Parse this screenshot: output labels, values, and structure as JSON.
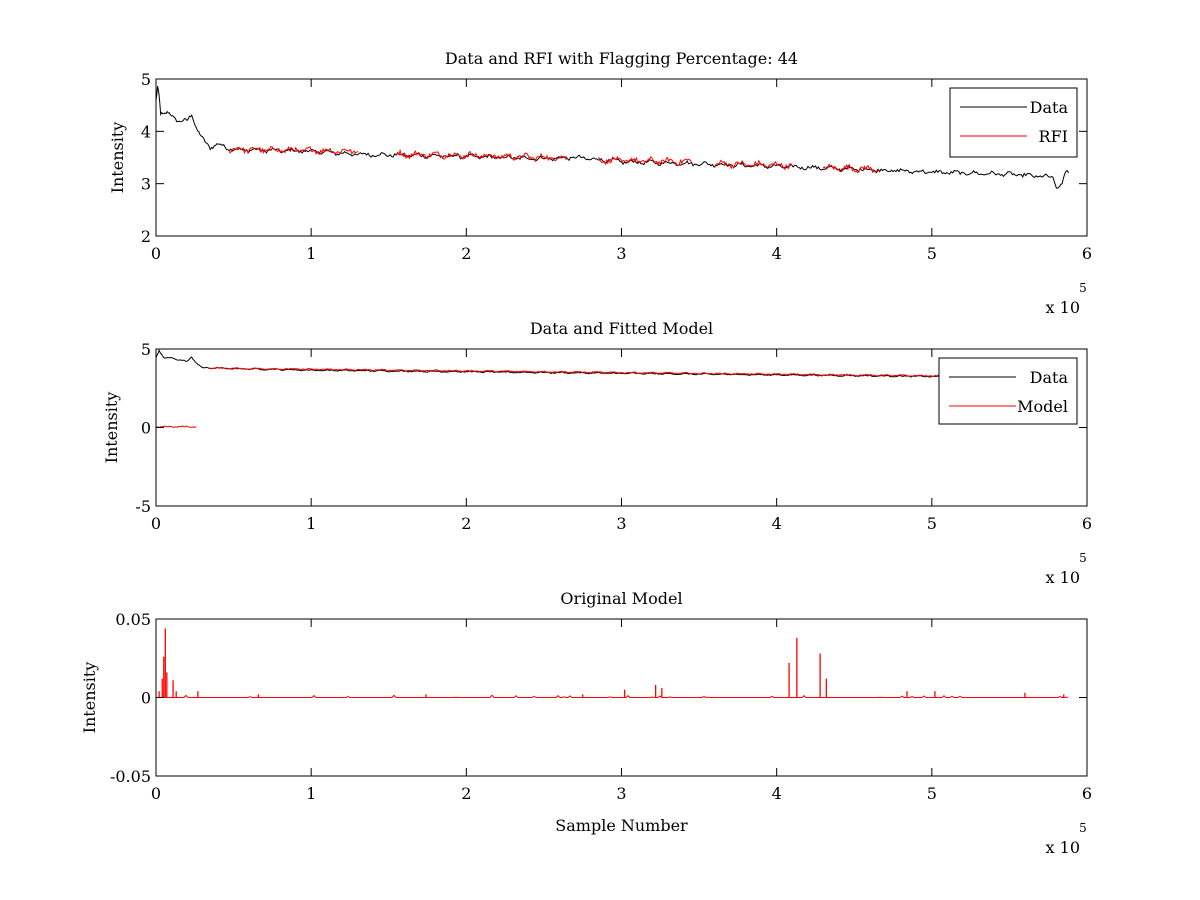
{
  "chart_data": [
    {
      "type": "line",
      "title": "Data and RFI with Flagging Percentage: 44",
      "xlabel": "",
      "ylabel": "Intensity",
      "xlim": [
        0,
        6
      ],
      "ylim": [
        2,
        5
      ],
      "x_multiplier": "x 10",
      "x_multiplier_exp": "5",
      "xticks": [
        0,
        1,
        2,
        3,
        4,
        5,
        6
      ],
      "yticks": [
        2,
        3,
        4,
        5
      ],
      "legend": {
        "placement": "top-right",
        "entries": [
          "Data",
          "RFI"
        ]
      },
      "series": [
        {
          "name": "Data",
          "color": "#000000",
          "x": [
            0,
            0.01,
            0.02,
            0.03,
            0.05,
            0.08,
            0.1,
            0.15,
            0.2,
            0.23,
            0.26,
            0.3,
            0.35,
            0.4,
            0.5,
            1.0,
            1.3,
            1.5,
            2.0,
            2.5,
            2.7,
            3.0,
            3.5,
            4.0,
            4.5,
            5.0,
            5.5,
            5.7,
            5.78,
            5.81,
            5.84,
            5.87,
            5.88
          ],
          "y": [
            4.6,
            4.88,
            4.7,
            4.35,
            4.3,
            4.35,
            4.32,
            4.18,
            4.2,
            4.35,
            4.05,
            3.85,
            3.7,
            3.75,
            3.65,
            3.62,
            3.56,
            3.55,
            3.52,
            3.48,
            3.5,
            3.42,
            3.38,
            3.33,
            3.28,
            3.22,
            3.18,
            3.14,
            3.12,
            2.9,
            3.0,
            3.25,
            3.2
          ]
        },
        {
          "name": "RFI",
          "color": "#ff0000",
          "segments": [
            {
              "x": [
                0.47,
                1.3
              ],
              "y": [
                3.66,
                3.62
              ]
            },
            {
              "x": [
                1.55,
                2.1
              ],
              "y": [
                3.56,
                3.54
              ]
            },
            {
              "x": [
                2.1,
                2.65
              ],
              "y": [
                3.53,
                3.49
              ]
            },
            {
              "x": [
                2.85,
                3.45
              ],
              "y": [
                3.45,
                3.42
              ]
            },
            {
              "x": [
                3.6,
                4.1
              ],
              "y": [
                3.38,
                3.35
              ]
            },
            {
              "x": [
                4.3,
                4.65
              ],
              "y": [
                3.3,
                3.28
              ]
            }
          ]
        }
      ]
    },
    {
      "type": "line",
      "title": "Data and Fitted Model",
      "xlabel": "",
      "ylabel": "Intensity",
      "xlim": [
        0,
        6
      ],
      "ylim": [
        -5,
        5
      ],
      "x_multiplier": "x 10",
      "x_multiplier_exp": "5",
      "xticks": [
        0,
        1,
        2,
        3,
        4,
        5,
        6
      ],
      "yticks": [
        -5,
        0,
        5
      ],
      "legend": {
        "placement": "top-right",
        "entries": [
          "Data",
          "Model"
        ]
      },
      "series": [
        {
          "name": "Data",
          "color": "#000000",
          "x": [
            0,
            0.02,
            0.05,
            0.1,
            0.15,
            0.2,
            0.23,
            0.27,
            0.3,
            0.35,
            0.5,
            1.0,
            2.0,
            3.0,
            4.0,
            5.0,
            5.88
          ],
          "y": [
            4.5,
            4.9,
            4.4,
            4.45,
            4.3,
            4.2,
            4.5,
            4.0,
            3.8,
            3.8,
            3.75,
            3.65,
            3.55,
            3.45,
            3.35,
            3.25,
            3.2
          ]
        },
        {
          "name": "Model",
          "color": "#ff0000",
          "segments": [
            {
              "x": [
                0,
                0.26
              ],
              "y": [
                0.05,
                0.05
              ]
            },
            {
              "x": [
                0.35,
                5.88
              ],
              "y": [
                3.78,
                3.2
              ]
            }
          ]
        }
      ]
    },
    {
      "type": "line",
      "title": "Original Model",
      "xlabel": "Sample Number",
      "ylabel": "Intensity",
      "xlim": [
        0,
        6
      ],
      "ylim": [
        -0.05,
        0.05
      ],
      "x_multiplier": "x 10",
      "x_multiplier_exp": "5",
      "xticks": [
        0,
        1,
        2,
        3,
        4,
        5,
        6
      ],
      "yticks": [
        -0.05,
        0,
        0.05
      ],
      "ytick_labels": [
        "-0.05",
        "0",
        "0.05"
      ],
      "series": [
        {
          "name": "",
          "color": "#ff0000",
          "baseline": [
            0,
            5.88
          ],
          "spikes": [
            {
              "x": 0.02,
              "y": 0.004
            },
            {
              "x": 0.04,
              "y": 0.012
            },
            {
              "x": 0.05,
              "y": 0.026
            },
            {
              "x": 0.06,
              "y": 0.044
            },
            {
              "x": 0.07,
              "y": 0.016
            },
            {
              "x": 0.11,
              "y": 0.011
            },
            {
              "x": 0.13,
              "y": 0.004
            },
            {
              "x": 0.27,
              "y": 0.004
            },
            {
              "x": 0.66,
              "y": 0.002
            },
            {
              "x": 1.74,
              "y": 0.002
            },
            {
              "x": 2.75,
              "y": 0.002
            },
            {
              "x": 3.02,
              "y": 0.005
            },
            {
              "x": 3.22,
              "y": 0.008
            },
            {
              "x": 3.26,
              "y": 0.006
            },
            {
              "x": 4.08,
              "y": 0.022
            },
            {
              "x": 4.13,
              "y": 0.038
            },
            {
              "x": 4.28,
              "y": 0.028
            },
            {
              "x": 4.32,
              "y": 0.012
            },
            {
              "x": 4.84,
              "y": 0.004
            },
            {
              "x": 5.02,
              "y": 0.004
            },
            {
              "x": 5.6,
              "y": 0.003
            },
            {
              "x": 5.85,
              "y": 0.002
            }
          ]
        }
      ]
    }
  ]
}
